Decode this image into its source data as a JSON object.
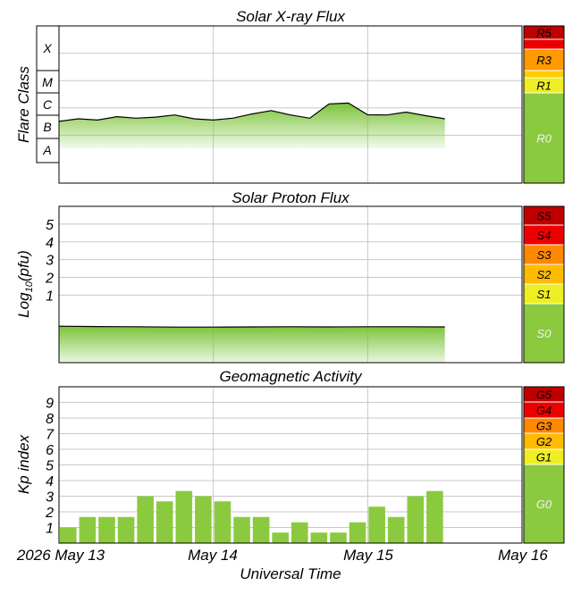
{
  "chart_data": [
    {
      "type": "line",
      "title": "Solar X-ray Flux",
      "ylabel": "Flare Class",
      "y_scale": "log",
      "class_labels": [
        "A",
        "B",
        "C",
        "M",
        "X"
      ],
      "ylim": [
        1e-08,
        0.001
      ],
      "x": [
        "2026-05-13 00:00",
        "2026-05-13 03:00",
        "2026-05-13 06:00",
        "2026-05-13 09:00",
        "2026-05-13 12:00",
        "2026-05-13 15:00",
        "2026-05-13 18:00",
        "2026-05-13 21:00",
        "2026-05-14 00:00",
        "2026-05-14 03:00",
        "2026-05-14 06:00",
        "2026-05-14 09:00",
        "2026-05-14 12:00",
        "2026-05-14 15:00",
        "2026-05-14 18:00",
        "2026-05-14 21:00",
        "2026-05-15 00:00",
        "2026-05-15 03:00",
        "2026-05-15 06:00",
        "2026-05-15 09:00",
        "2026-05-15 12:00"
      ],
      "series": [
        {
          "values": [
            3.2e-07,
            4e-07,
            3.6e-07,
            4.8e-07,
            4.2e-07,
            4.6e-07,
            5.5e-07,
            4e-07,
            3.6e-07,
            4.2e-07,
            6e-07,
            8e-07,
            5.5e-07,
            4.2e-07,
            1.4e-06,
            1.5e-06,
            5.6e-07,
            5.5e-07,
            7e-07,
            5.2e-07,
            4e-07
          ]
        }
      ],
      "scale": [
        {
          "label": "R5",
          "color": "#c00000"
        },
        {
          "label": "",
          "color": "#ee0000"
        },
        {
          "label": "R3",
          "color": "#ff9900"
        },
        {
          "label": "",
          "color": "#ffcc00"
        },
        {
          "label": "R1",
          "color": "#eeee22"
        },
        {
          "label": "R0",
          "color": "#8bca3f"
        }
      ]
    },
    {
      "type": "line",
      "title": "Solar Proton Flux",
      "ylabel": "Log10(pfu)",
      "ylabel_main": "Log",
      "ylabel_sub": "10",
      "ylabel_tail": "(pfu)",
      "yticks": [
        1,
        2,
        3,
        4,
        5
      ],
      "ylim": [
        -2.8,
        6
      ],
      "x": [
        "2026-05-13 00:00",
        "2026-05-13 06:00",
        "2026-05-13 12:00",
        "2026-05-13 18:00",
        "2026-05-14 00:00",
        "2026-05-14 06:00",
        "2026-05-14 12:00",
        "2026-05-14 18:00",
        "2026-05-15 00:00",
        "2026-05-15 06:00",
        "2026-05-15 12:00"
      ],
      "series": [
        {
          "values": [
            -0.75,
            -0.77,
            -0.78,
            -0.8,
            -0.8,
            -0.79,
            -0.78,
            -0.79,
            -0.78,
            -0.78,
            -0.79
          ]
        }
      ],
      "scale": [
        {
          "label": "S5",
          "color": "#c00000"
        },
        {
          "label": "S4",
          "color": "#ee0000"
        },
        {
          "label": "S3",
          "color": "#ff8800"
        },
        {
          "label": "S2",
          "color": "#ffbb00"
        },
        {
          "label": "S1",
          "color": "#eeee22"
        },
        {
          "label": "S0",
          "color": "#8bca3f"
        }
      ]
    },
    {
      "type": "bar",
      "title": "Geomagnetic Activity",
      "ylabel": "Kp index",
      "yticks": [
        1,
        2,
        3,
        4,
        5,
        6,
        7,
        8,
        9
      ],
      "ylim": [
        0,
        10
      ],
      "categories": [
        "May 13 00-03",
        "May 13 03-06",
        "May 13 06-09",
        "May 13 09-12",
        "May 13 12-15",
        "May 13 15-18",
        "May 13 18-21",
        "May 13 21-24",
        "May 14 00-03",
        "May 14 03-06",
        "May 14 06-09",
        "May 14 09-12",
        "May 14 12-15",
        "May 14 15-18",
        "May 14 18-21",
        "May 14 21-24",
        "May 15 00-03",
        "May 15 03-06",
        "May 15 06-09",
        "May 15 09-12",
        "May 15 12-15"
      ],
      "values": [
        1.0,
        1.67,
        1.67,
        1.67,
        3.0,
        2.67,
        3.33,
        3.0,
        2.67,
        1.67,
        1.67,
        0.67,
        1.33,
        0.67,
        0.67,
        1.33,
        2.33,
        1.67,
        3.0,
        3.33,
        null
      ],
      "scale": [
        {
          "label": "G5",
          "color": "#c00000"
        },
        {
          "label": "G4",
          "color": "#ee0000"
        },
        {
          "label": "G3",
          "color": "#ff8800"
        },
        {
          "label": "G2",
          "color": "#ffbb00"
        },
        {
          "label": "G1",
          "color": "#eeee22"
        },
        {
          "label": "G0",
          "color": "#8bca3f"
        }
      ]
    }
  ],
  "xaxis": {
    "label": "Universal Time",
    "ticks": [
      "2026 May 13",
      "May 14",
      "May 15",
      "May 16"
    ]
  },
  "colors": {
    "fill": "#8bca3f",
    "line": "#000000",
    "grid": "#c8c8c8"
  }
}
